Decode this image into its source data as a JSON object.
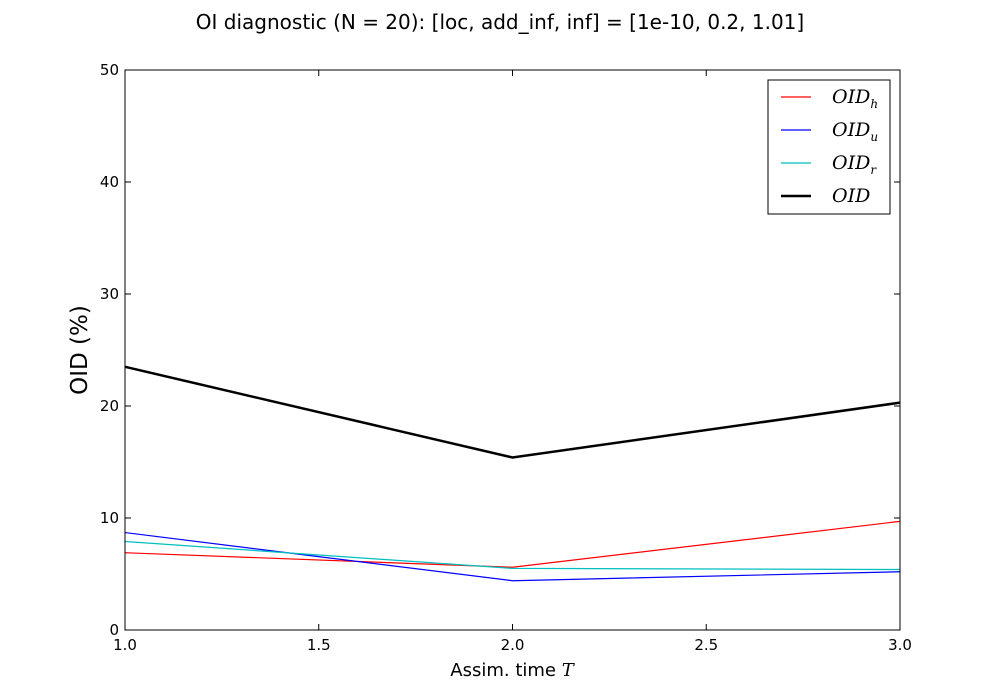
{
  "chart_data": {
    "type": "line",
    "title": "OI diagnostic  (N = 20): [loc, add_inf, inf] = [1e-10, 0.2, 1.01]",
    "xlabel_text": "Assim. time ",
    "xlabel_math": "T",
    "ylabel": "OID (%)",
    "xlim": [
      1.0,
      3.0
    ],
    "ylim": [
      0,
      50
    ],
    "xticks": [
      1.0,
      1.5,
      2.0,
      2.5,
      3.0
    ],
    "xtick_labels": [
      "1.0",
      "1.5",
      "2.0",
      "2.5",
      "3.0"
    ],
    "yticks": [
      0,
      10,
      20,
      30,
      40,
      50
    ],
    "ytick_labels": [
      "0",
      "10",
      "20",
      "30",
      "40",
      "50"
    ],
    "grid": false,
    "legend_position": "top-right",
    "x": [
      1.0,
      2.0,
      3.0
    ],
    "series": [
      {
        "name": "OID_h",
        "legend_main": "OID",
        "legend_sub": "h",
        "color": "#ff0000",
        "linewidth": 1.2,
        "values": [
          6.9,
          5.6,
          9.7
        ]
      },
      {
        "name": "OID_u",
        "legend_main": "OID",
        "legend_sub": "u",
        "color": "#0000ff",
        "linewidth": 1.2,
        "values": [
          8.7,
          4.4,
          5.2
        ]
      },
      {
        "name": "OID_r",
        "legend_main": "OID",
        "legend_sub": "r",
        "color": "#00bfbf",
        "linewidth": 1.2,
        "values": [
          7.9,
          5.5,
          5.4
        ]
      },
      {
        "name": "OID",
        "legend_main": "OID",
        "legend_sub": "",
        "color": "#000000",
        "linewidth": 2.5,
        "values": [
          23.5,
          15.4,
          20.3
        ]
      }
    ]
  }
}
